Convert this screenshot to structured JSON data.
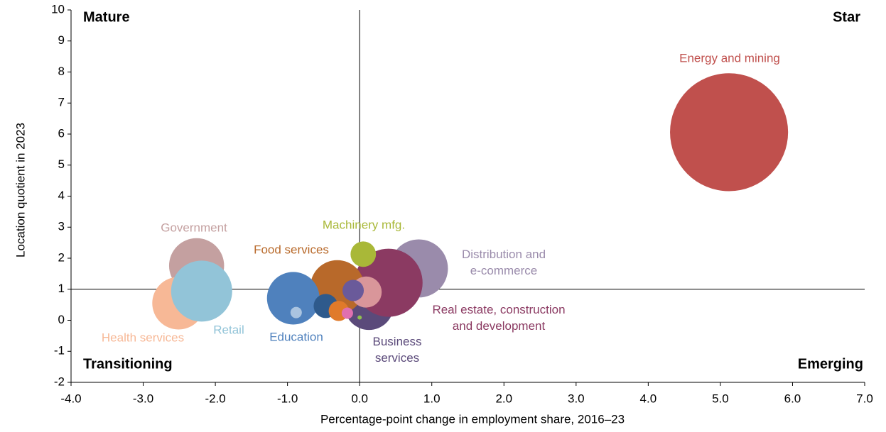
{
  "chart_data": {
    "type": "bubble",
    "xlabel": "Percentage-point change in employment share, 2016–23",
    "ylabel": "Location quotient in 2023",
    "xlim": [
      -4,
      7
    ],
    "xticks": [
      {
        "value": -4,
        "label": "-4.0"
      },
      {
        "value": -3,
        "label": "-3.0"
      },
      {
        "value": -2,
        "label": "-2.0"
      },
      {
        "value": -1,
        "label": "-1.0"
      },
      {
        "value": 0,
        "label": "0.0"
      },
      {
        "value": 1,
        "label": "1.0"
      },
      {
        "value": 2,
        "label": "2.0"
      },
      {
        "value": 3,
        "label": "3.0"
      },
      {
        "value": 4,
        "label": "4.0"
      },
      {
        "value": 5,
        "label": "5.0"
      },
      {
        "value": 6,
        "label": "6.0"
      },
      {
        "value": 7,
        "label": "7.0"
      }
    ],
    "ylim": [
      -2,
      10
    ],
    "yticks": [
      -2,
      -1,
      0,
      1,
      2,
      3,
      4,
      5,
      6,
      7,
      8,
      9,
      10
    ],
    "reference_lines": {
      "x": 0,
      "y": 1
    },
    "annotations": [
      "Mature",
      "Star",
      "Transitioning",
      "Emerging"
    ],
    "series": [
      {
        "name": "Energy and mining",
        "color": "#c0504d",
        "x": [
          5.12
        ],
        "values": [
          6.06
        ],
        "sizes": [
          69
        ]
      },
      {
        "name": "Distribution and\ne-commerce",
        "color": "#9a8bab",
        "x": [
          0.82
        ],
        "values": [
          1.67
        ],
        "sizes": [
          16.8
        ]
      },
      {
        "name": "Business\nservices",
        "color": "#5b4a7a",
        "x": [
          0.13
        ],
        "values": [
          0.48
        ],
        "sizes": [
          12
        ]
      },
      {
        "name": "Real estate, construction\nand development",
        "color": "#8b3a62",
        "x": [
          0.4
        ],
        "values": [
          1.21
        ],
        "sizes": [
          23
        ]
      },
      {
        "name": "Government",
        "color": "#c4a0a0",
        "x": [
          -2.26
        ],
        "values": [
          1.76
        ],
        "sizes": [
          15
        ]
      },
      {
        "name": "Health services",
        "color": "#f7b896",
        "x": [
          -2.51
        ],
        "values": [
          0.55
        ],
        "sizes": [
          13.7
        ]
      },
      {
        "name": "Retail",
        "color": "#92c4d8",
        "x": [
          -2.19
        ],
        "values": [
          0.94
        ],
        "sizes": [
          18.5
        ]
      },
      {
        "name": "Food services",
        "color": "#b8692a",
        "x": [
          -0.31
        ],
        "values": [
          1.07
        ],
        "sizes": [
          14.4
        ]
      },
      {
        "name": "Education",
        "color": "#4f81bd",
        "x": [
          -0.92
        ],
        "values": [
          0.71
        ],
        "sizes": [
          13.7
        ]
      },
      {
        "name": "Machinery mfg.",
        "color": "#a9b838",
        "x": [
          0.05
        ],
        "values": [
          2.13
        ],
        "sizes": [
          3.2
        ]
      },
      {
        "name": null,
        "color": "#aac4e0",
        "x": [
          -0.88
        ],
        "values": [
          0.25
        ],
        "sizes": [
          0.64
        ]
      },
      {
        "name": null,
        "color": "#2e5a8c",
        "x": [
          -0.47
        ],
        "values": [
          0.46
        ],
        "sizes": [
          2.9
        ]
      },
      {
        "name": null,
        "color": "#e07a2a",
        "x": [
          -0.29
        ],
        "values": [
          0.3
        ],
        "sizes": [
          2
        ]
      },
      {
        "name": null,
        "color": "#d9969a",
        "x": [
          0.09
        ],
        "values": [
          0.91
        ],
        "sizes": [
          4.8
        ]
      },
      {
        "name": null,
        "color": "#6a5a9a",
        "x": [
          -0.09
        ],
        "values": [
          0.96
        ],
        "sizes": [
          2.25
        ]
      },
      {
        "name": null,
        "color": "#e070b0",
        "x": [
          -0.17
        ],
        "values": [
          0.23
        ],
        "sizes": [
          0.64
        ]
      },
      {
        "name": null,
        "color": "#8fc04f",
        "x": [
          0
        ],
        "values": [
          0.09
        ],
        "sizes": [
          0.09
        ]
      }
    ]
  }
}
